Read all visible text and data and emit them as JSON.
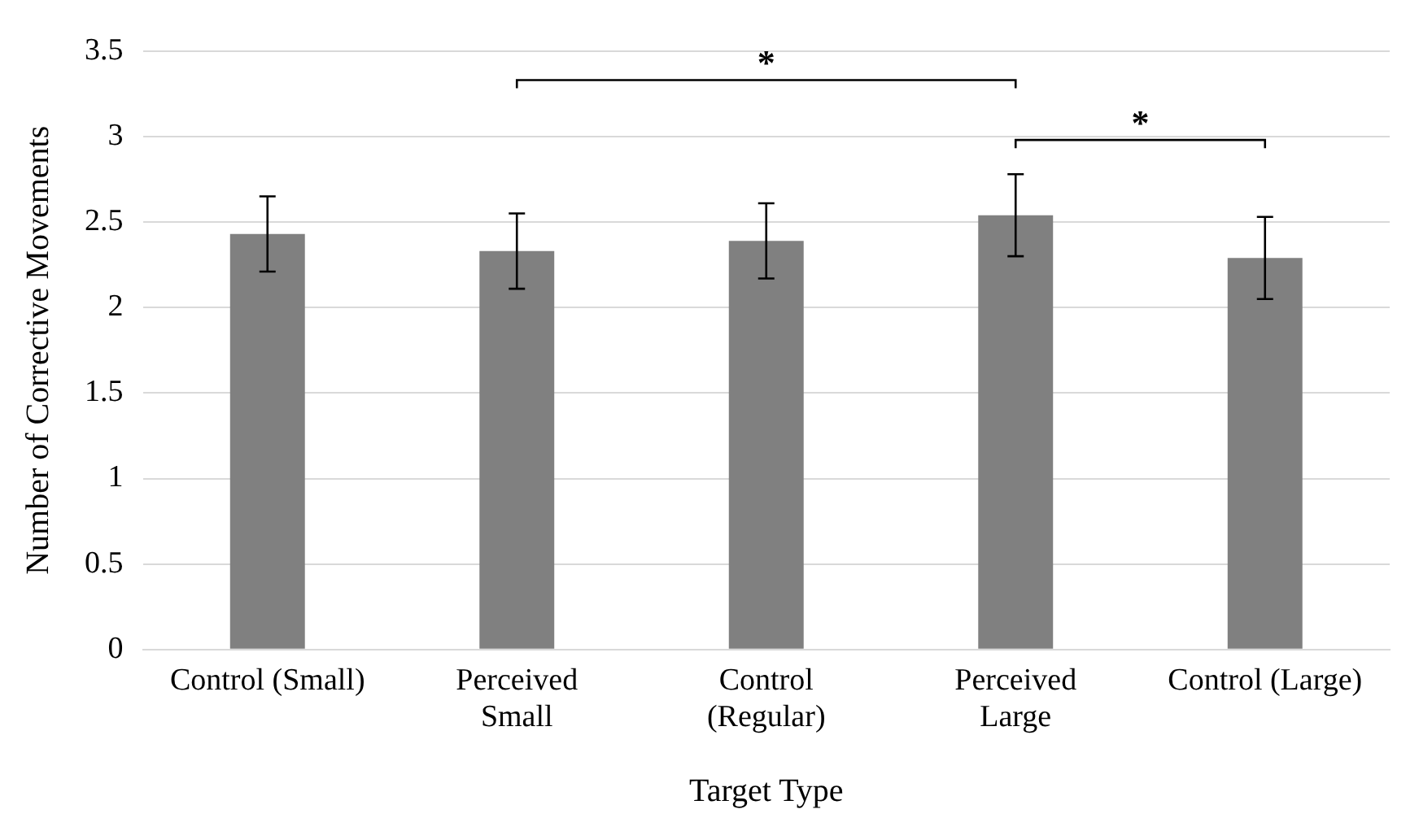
{
  "chart_data": {
    "type": "bar",
    "xlabel": "Target Type",
    "ylabel": "Number of Corrective Movements",
    "categories": [
      "Control (Small)",
      "Perceived\nSmall",
      "Control\n(Regular)",
      "Perceived\nLarge",
      "Control (Large)"
    ],
    "values": [
      2.43,
      2.33,
      2.39,
      2.54,
      2.29
    ],
    "errors": [
      0.22,
      0.22,
      0.22,
      0.24,
      0.24
    ],
    "color": "#808080",
    "ylim": [
      0,
      3.5
    ],
    "yticks": [
      0,
      0.5,
      1,
      1.5,
      2,
      2.5,
      3,
      3.5
    ],
    "grid": "y",
    "annotations": [
      "*",
      "*"
    ]
  }
}
